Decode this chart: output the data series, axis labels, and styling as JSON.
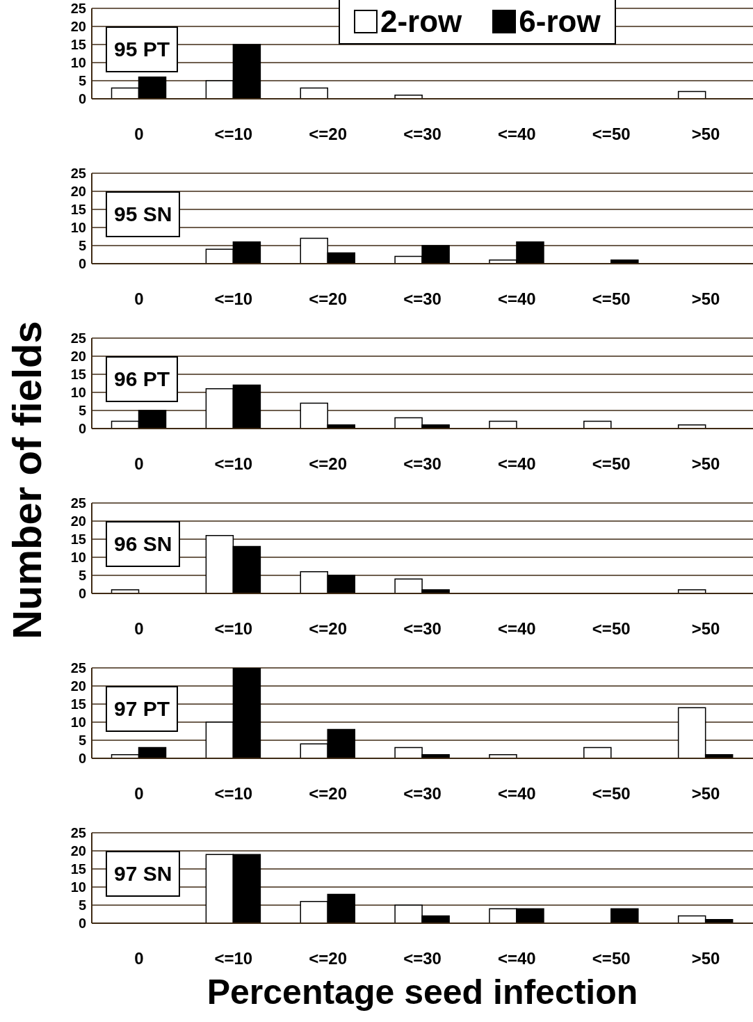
{
  "chart_data": [
    {
      "type": "bar",
      "title": "95 PT",
      "ylabel": "Number of fields",
      "categories": [
        "0",
        "<=10",
        "<=20",
        "<=30",
        "<=40",
        "<=50",
        ">50"
      ],
      "series": [
        {
          "name": "2-row",
          "color": "#ffffff",
          "values": [
            3,
            5,
            3,
            1,
            0,
            0,
            2
          ]
        },
        {
          "name": "6-row",
          "color": "#000000",
          "values": [
            6,
            15,
            0,
            0,
            0,
            0,
            0
          ]
        }
      ],
      "ylim": [
        0,
        25
      ],
      "yticks": [
        0,
        5,
        10,
        15,
        20,
        25
      ],
      "grid": "y",
      "legend": "top"
    },
    {
      "type": "bar",
      "title": "95 SN",
      "categories": [
        "0",
        "<=10",
        "<=20",
        "<=30",
        "<=40",
        "<=50",
        ">50"
      ],
      "series": [
        {
          "color": "#ffffff",
          "values": [
            0,
            4,
            7,
            2,
            1,
            0,
            0
          ]
        },
        {
          "color": "#000000",
          "values": [
            0,
            6,
            3,
            5,
            6,
            1,
            0
          ]
        }
      ],
      "ylim": [
        0,
        25
      ],
      "yticks": [
        0,
        5,
        10,
        15,
        20,
        25
      ],
      "grid": "y"
    },
    {
      "type": "bar",
      "title": "96 PT",
      "categories": [
        "0",
        "<=10",
        "<=20",
        "<=30",
        "<=40",
        "<=50",
        ">50"
      ],
      "series": [
        {
          "color": "#ffffff",
          "values": [
            2,
            11,
            7,
            3,
            2,
            2,
            1
          ]
        },
        {
          "color": "#000000",
          "values": [
            5,
            12,
            1,
            1,
            0,
            0,
            0
          ]
        }
      ],
      "ylim": [
        0,
        25
      ],
      "yticks": [
        0,
        5,
        10,
        15,
        20,
        25
      ],
      "grid": "y"
    },
    {
      "type": "bar",
      "title": "96 SN",
      "categories": [
        "0",
        "<=10",
        "<=20",
        "<=30",
        "<=40",
        "<=50",
        ">50"
      ],
      "series": [
        {
          "color": "#ffffff",
          "values": [
            1,
            16,
            6,
            4,
            0,
            0,
            1
          ]
        },
        {
          "color": "#000000",
          "values": [
            0,
            13,
            5,
            1,
            0,
            0,
            0
          ]
        }
      ],
      "ylim": [
        0,
        25
      ],
      "yticks": [
        0,
        5,
        10,
        15,
        20,
        25
      ],
      "grid": "y"
    },
    {
      "type": "bar",
      "title": "97 PT",
      "categories": [
        "0",
        "<=10",
        "<=20",
        "<=30",
        "<=40",
        "<=50",
        ">50"
      ],
      "series": [
        {
          "color": "#ffffff",
          "values": [
            1,
            10,
            4,
            3,
            1,
            3,
            14
          ]
        },
        {
          "color": "#000000",
          "values": [
            3,
            25,
            8,
            1,
            0,
            0,
            1
          ]
        }
      ],
      "ylim": [
        0,
        25
      ],
      "yticks": [
        0,
        5,
        10,
        15,
        20,
        25
      ],
      "grid": "y"
    },
    {
      "type": "bar",
      "title": "97 SN",
      "xlabel": "Percentage seed infection",
      "categories": [
        "0",
        "<=10",
        "<=20",
        "<=30",
        "<=40",
        "<=50",
        ">50"
      ],
      "series": [
        {
          "color": "#ffffff",
          "values": [
            0,
            19,
            6,
            5,
            4,
            0,
            2
          ]
        },
        {
          "color": "#000000",
          "values": [
            0,
            19,
            8,
            2,
            4,
            4,
            1
          ]
        }
      ],
      "ylim": [
        0,
        25
      ],
      "yticks": [
        0,
        5,
        10,
        15,
        20,
        25
      ],
      "grid": "y"
    }
  ]
}
